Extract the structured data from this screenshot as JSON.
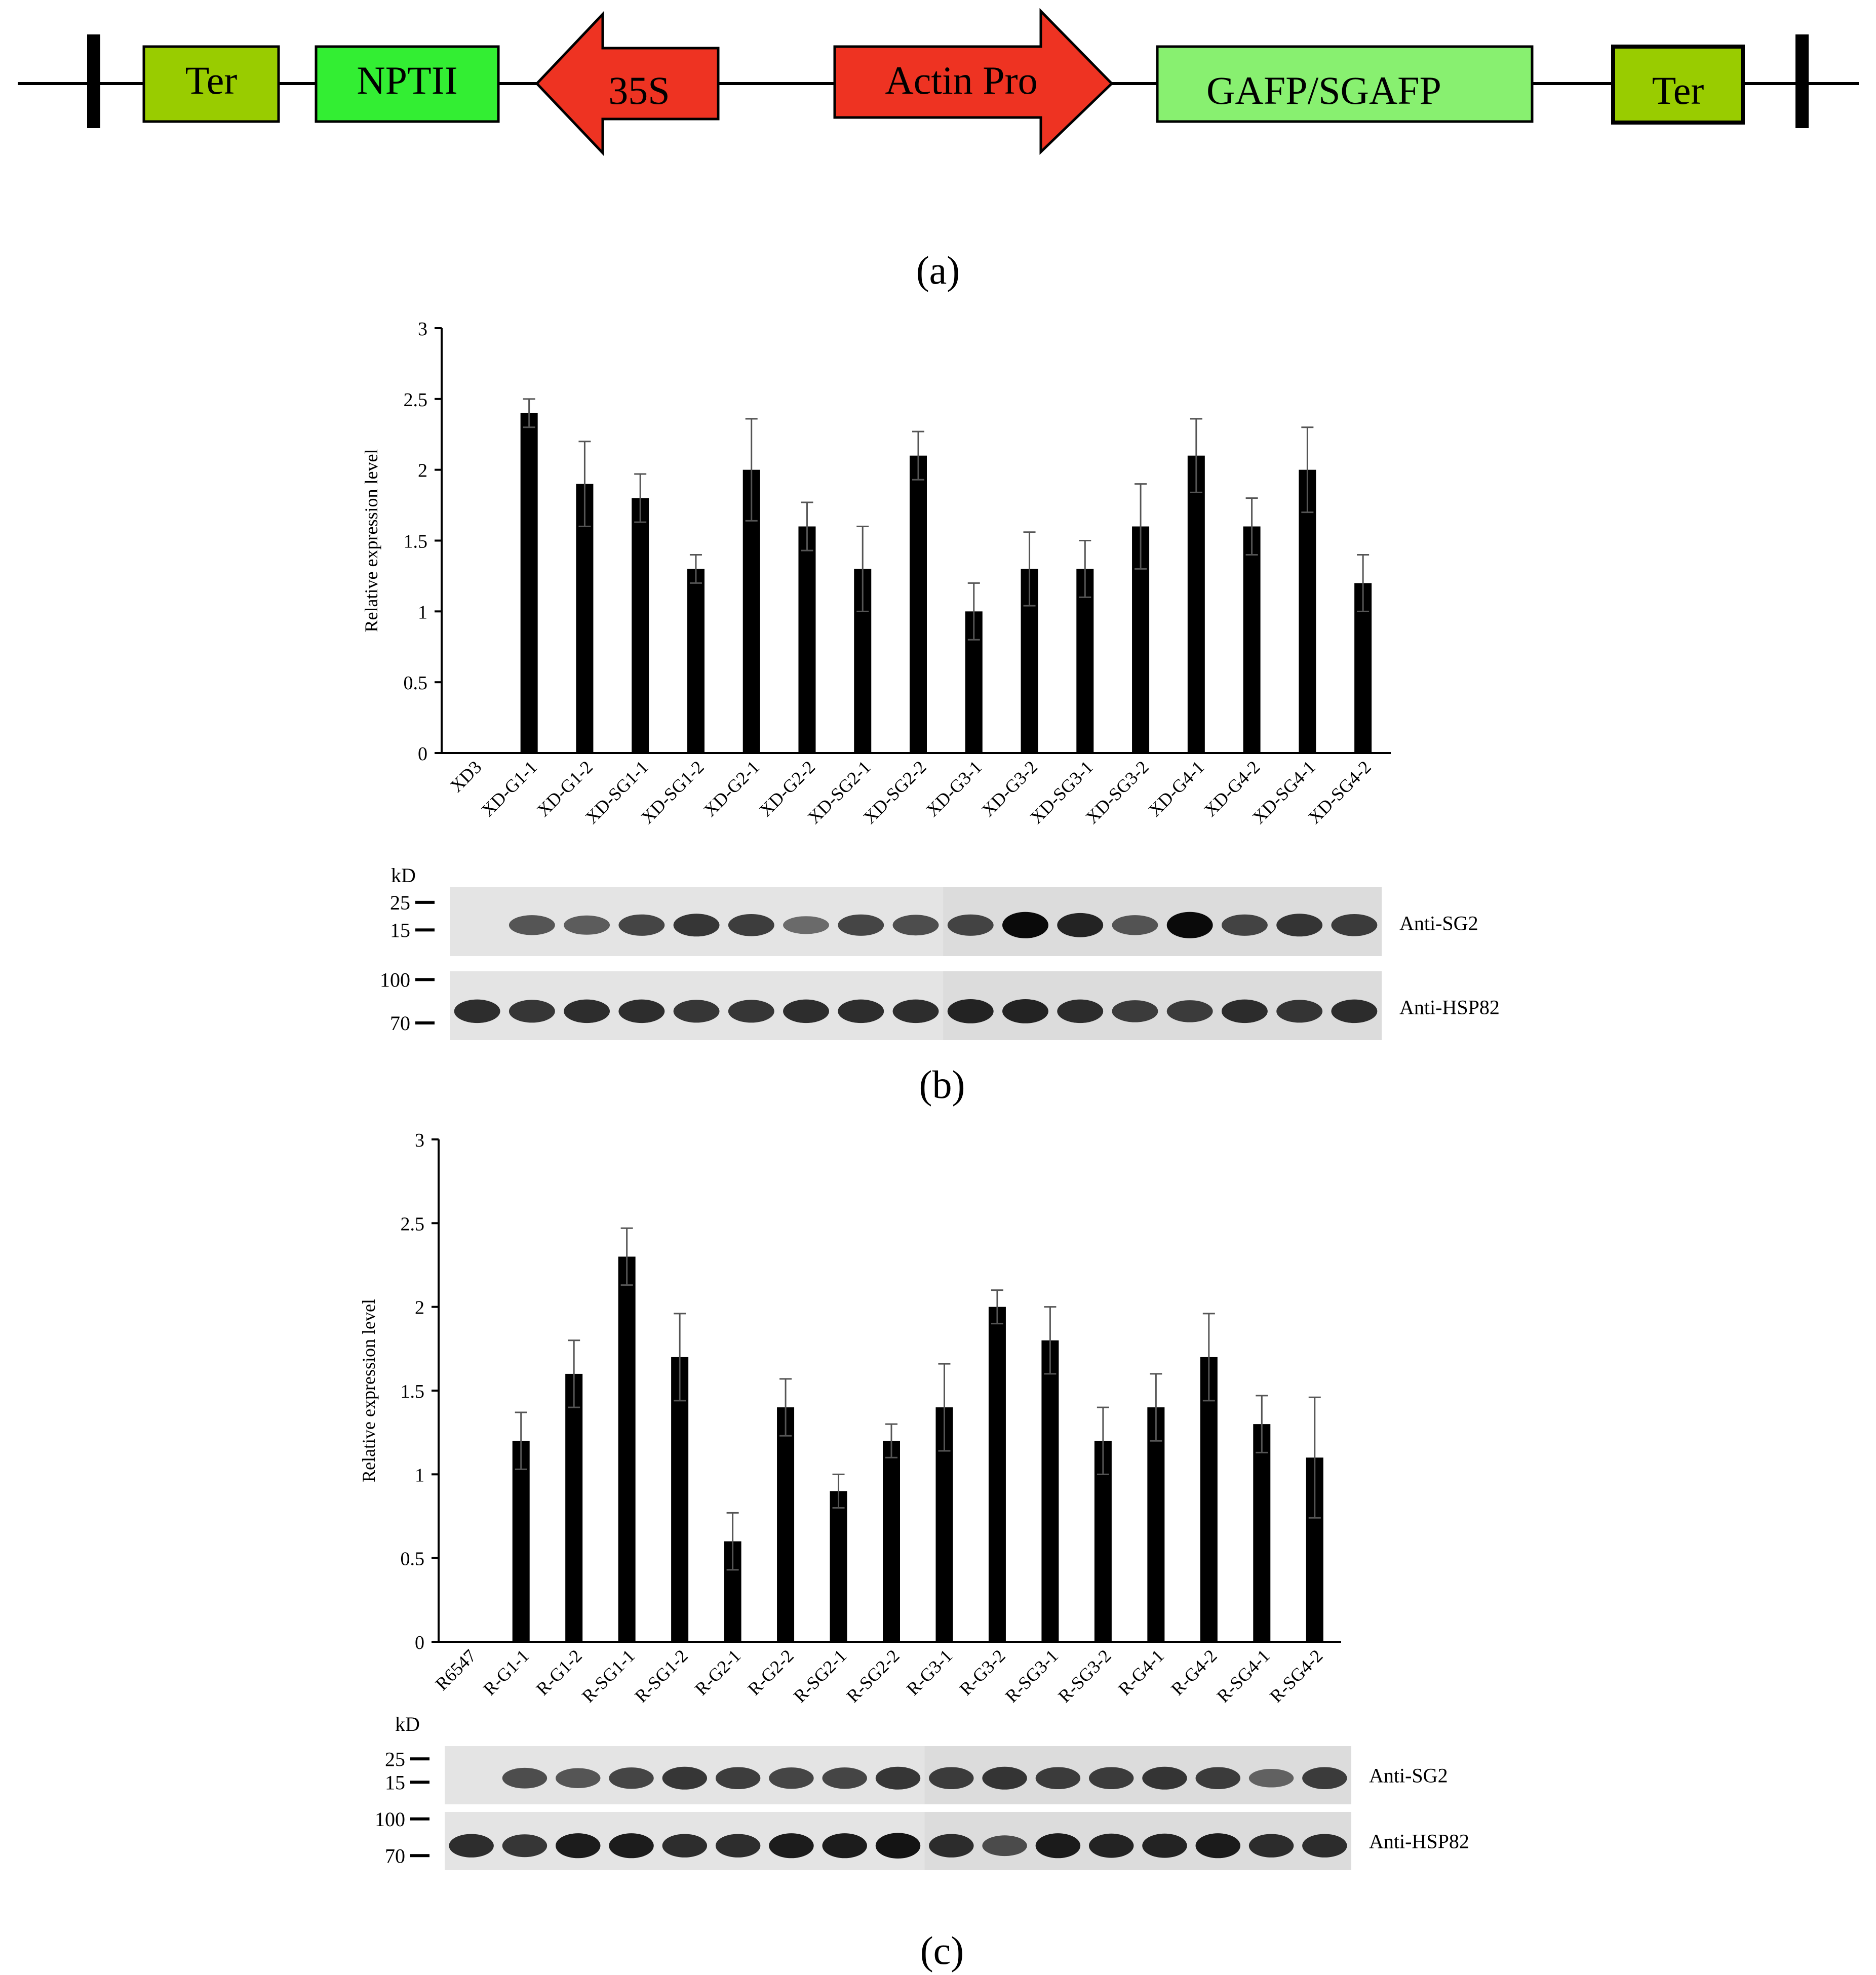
{
  "construct": {
    "elements": [
      {
        "label": "Ter",
        "color": "#99cc00"
      },
      {
        "label": "NPTII",
        "color": "#33ee33"
      },
      {
        "label": "35S",
        "color": "#ee3322"
      },
      {
        "label": "Actin Pro",
        "color": "#ee3322"
      },
      {
        "label": "GAFP/SGAFP",
        "color": "#88f070"
      },
      {
        "label": "Ter",
        "color": "#99cc00"
      }
    ]
  },
  "panel_labels": {
    "a": "(a)",
    "b": "(b)",
    "c": "(c)"
  },
  "chart_data": [
    {
      "type": "bar",
      "ylabel": "Relative expression level",
      "ylim": [
        0,
        3
      ],
      "yticks": [
        "0",
        "0.5",
        "1",
        "1.5",
        "2",
        "2.5",
        "3"
      ],
      "categories": [
        "XD3",
        "XD-G1-1",
        "XD-G1-2",
        "XD-SG1-1",
        "XD-SG1-2",
        "XD-G2-1",
        "XD-G2-2",
        "XD-SG2-1",
        "XD-SG2-2",
        "XD-G3-1",
        "XD-G3-2",
        "XD-SG3-1",
        "XD-SG3-2",
        "XD-G4-1",
        "XD-G4-2",
        "XD-SG4-1",
        "XD-SG4-2"
      ],
      "values": [
        0,
        2.4,
        1.9,
        1.8,
        1.3,
        2.0,
        1.6,
        1.3,
        2.1,
        1.0,
        1.3,
        1.3,
        1.6,
        2.1,
        1.6,
        2.0,
        1.2
      ],
      "errors": [
        0,
        0.1,
        0.3,
        0.17,
        0.1,
        0.36,
        0.17,
        0.3,
        0.17,
        0.2,
        0.26,
        0.2,
        0.3,
        0.26,
        0.2,
        0.3,
        0.2
      ],
      "bar_color": "#000000"
    },
    {
      "type": "bar",
      "ylabel": "Relative expression level",
      "ylim": [
        0,
        3
      ],
      "yticks": [
        "0",
        "0.5",
        "1",
        "1.5",
        "2",
        "2.5",
        "3"
      ],
      "categories": [
        "R6547",
        "R-G1-1",
        "R-G1-2",
        "R-SG1-1",
        "R-SG1-2",
        "R-G2-1",
        "R-G2-2",
        "R-SG2-1",
        "R-SG2-2",
        "R-G3-1",
        "R-G3-2",
        "R-SG3-1",
        "R-SG3-2",
        "R-G4-1",
        "R-G4-2",
        "R-SG4-1",
        "R-SG4-2"
      ],
      "values": [
        0,
        1.2,
        1.6,
        2.3,
        1.7,
        0.6,
        1.4,
        0.9,
        1.2,
        1.4,
        2.0,
        1.8,
        1.2,
        1.4,
        1.7,
        1.3,
        1.1
      ],
      "errors": [
        0,
        0.17,
        0.2,
        0.17,
        0.26,
        0.17,
        0.17,
        0.1,
        0.1,
        0.26,
        0.1,
        0.2,
        0.2,
        0.2,
        0.26,
        0.17,
        0.36
      ],
      "bar_color": "#000000"
    }
  ],
  "blot_b": {
    "kd_label": "kD",
    "top": {
      "label": "Anti-SG2",
      "markers": [
        "25",
        "15"
      ],
      "intensity": [
        0,
        0.55,
        0.5,
        0.65,
        0.75,
        0.7,
        0.4,
        0.65,
        0.6,
        0.65,
        1.0,
        0.85,
        0.55,
        1.0,
        0.65,
        0.75,
        0.7
      ]
    },
    "bottom": {
      "label": "Anti-HSP82",
      "markers": [
        "100",
        "70"
      ],
      "intensity": [
        0.8,
        0.75,
        0.8,
        0.8,
        0.75,
        0.75,
        0.8,
        0.8,
        0.8,
        0.85,
        0.85,
        0.8,
        0.7,
        0.7,
        0.8,
        0.75,
        0.8
      ]
    }
  },
  "blot_c": {
    "kd_label": "kD",
    "top": {
      "label": "Anti-SG2",
      "markers": [
        "25",
        "15"
      ],
      "intensity": [
        0,
        0.6,
        0.55,
        0.65,
        0.75,
        0.7,
        0.65,
        0.65,
        0.75,
        0.7,
        0.75,
        0.7,
        0.7,
        0.75,
        0.7,
        0.45,
        0.7
      ]
    },
    "bottom": {
      "label": "Anti-HSP82",
      "markers": [
        "100",
        "70"
      ],
      "intensity": [
        0.8,
        0.75,
        0.9,
        0.9,
        0.8,
        0.8,
        0.9,
        0.9,
        0.95,
        0.8,
        0.6,
        0.9,
        0.85,
        0.85,
        0.9,
        0.8,
        0.8
      ]
    }
  }
}
